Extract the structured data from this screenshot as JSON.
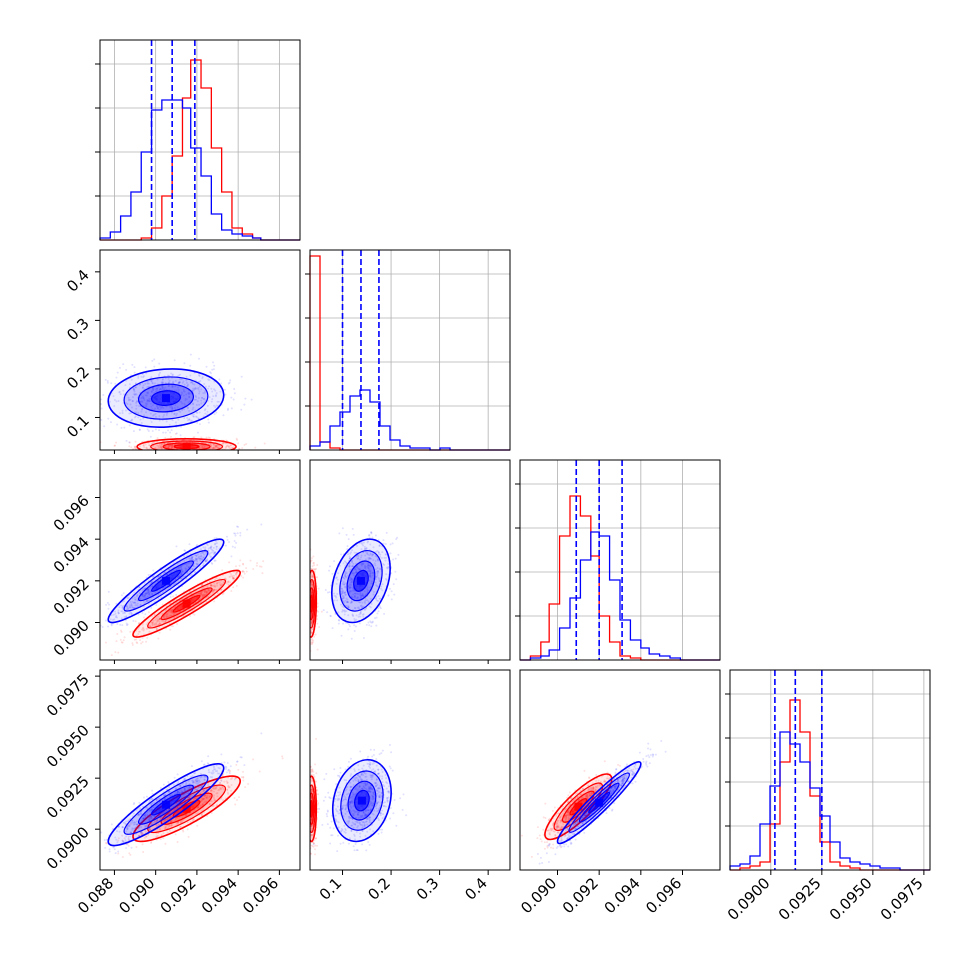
{
  "colors": {
    "series_a": "#ff0000",
    "series_b": "#0000ff",
    "grid": "#b0b0b0",
    "axes": "#000000"
  },
  "chart_data": {
    "type": "corner",
    "grid": true,
    "n_parameters": 4,
    "parameters": [
      {
        "index": 0,
        "range": [
          0.0873,
          0.097
        ],
        "tick_values": [
          0.088,
          0.09,
          0.092,
          0.094,
          0.096
        ],
        "tick_labels": [
          "0.088",
          "0.090",
          "0.092",
          "0.094",
          "0.096"
        ],
        "quantiles_blue": [
          0.0898,
          0.0908,
          0.0919
        ]
      },
      {
        "index": 1,
        "range": [
          0.033,
          0.445
        ],
        "tick_values": [
          0.1,
          0.2,
          0.3,
          0.4
        ],
        "tick_labels": [
          "0.1",
          "0.2",
          "0.3",
          "0.4"
        ],
        "quantiles_blue": [
          0.1,
          0.138,
          0.175
        ]
      },
      {
        "index": 2,
        "range": [
          0.0882,
          0.0978
        ],
        "tick_values": [
          0.09,
          0.092,
          0.094,
          0.096
        ],
        "tick_labels": [
          "0.090",
          "0.092",
          "0.094",
          "0.096"
        ],
        "quantiles_blue": [
          0.0909,
          0.092,
          0.0931
        ]
      },
      {
        "index": 3,
        "range": [
          0.088,
          0.0978
        ],
        "tick_values": [
          0.09,
          0.0925,
          0.095,
          0.0975
        ],
        "tick_labels": [
          "0.0900",
          "0.0925",
          "0.0950",
          "0.0975"
        ],
        "quantiles_blue": [
          0.0902,
          0.0912,
          0.0925
        ]
      }
    ],
    "histograms": [
      {
        "param": 0,
        "bin_edges": [
          0.0873,
          0.0878,
          0.0883,
          0.0888,
          0.0893,
          0.0898,
          0.0903,
          0.0908,
          0.0913,
          0.0917,
          0.0922,
          0.0927,
          0.0932,
          0.0937,
          0.0942,
          0.0947,
          0.0951,
          0.0956,
          0.0961,
          0.0966,
          0.097
        ],
        "red": [
          0,
          0,
          0,
          0,
          0.01,
          0.06,
          0.22,
          0.42,
          0.71,
          0.9,
          0.76,
          0.46,
          0.24,
          0.06,
          0.03,
          0.01,
          0,
          0,
          0,
          0
        ],
        "blue": [
          0.01,
          0.04,
          0.12,
          0.24,
          0.44,
          0.65,
          0.7,
          0.7,
          0.66,
          0.46,
          0.32,
          0.13,
          0.05,
          0.03,
          0.02,
          0.01,
          0,
          0,
          0,
          0
        ]
      },
      {
        "param": 1,
        "bin_edges": [
          0.033,
          0.0536,
          0.0742,
          0.0948,
          0.1154,
          0.136,
          0.1566,
          0.1772,
          0.1978,
          0.2184,
          0.239,
          0.2596,
          0.2802,
          0.3008,
          0.3214,
          0.342,
          0.3626,
          0.3832,
          0.4038,
          0.4244,
          0.445
        ],
        "red": [
          0.97,
          0.04,
          0.01,
          0,
          0,
          0,
          0,
          0,
          0,
          0,
          0,
          0,
          0,
          0,
          0,
          0,
          0,
          0,
          0,
          0
        ],
        "blue": [
          0.02,
          0.04,
          0.12,
          0.19,
          0.27,
          0.3,
          0.24,
          0.12,
          0.05,
          0.02,
          0.01,
          0.01,
          0,
          0.01,
          0,
          0,
          0,
          0,
          0,
          0
        ]
      },
      {
        "param": 2,
        "bin_edges": [
          0.0882,
          0.0887,
          0.0892,
          0.0896,
          0.0901,
          0.0906,
          0.0911,
          0.0916,
          0.092,
          0.0925,
          0.093,
          0.0935,
          0.094,
          0.0944,
          0.0949,
          0.0954,
          0.0959,
          0.0964,
          0.0968,
          0.0973,
          0.0978
        ],
        "red": [
          0,
          0.02,
          0.09,
          0.28,
          0.62,
          0.82,
          0.72,
          0.52,
          0.22,
          0.09,
          0.02,
          0.01,
          0,
          0,
          0,
          0,
          0,
          0,
          0,
          0
        ],
        "blue": [
          0,
          0.01,
          0.02,
          0.05,
          0.16,
          0.31,
          0.5,
          0.64,
          0.62,
          0.4,
          0.2,
          0.1,
          0.06,
          0.03,
          0.02,
          0.01,
          0,
          0,
          0,
          0
        ]
      },
      {
        "param": 3,
        "bin_edges": [
          0.088,
          0.08849,
          0.08898,
          0.08947,
          0.08996,
          0.09045,
          0.09094,
          0.09143,
          0.09192,
          0.09241,
          0.0929,
          0.09339,
          0.09388,
          0.09437,
          0.09486,
          0.09535,
          0.09584,
          0.09633,
          0.09682,
          0.09731,
          0.0978
        ],
        "red": [
          0,
          0.01,
          0.02,
          0.04,
          0.23,
          0.54,
          0.85,
          0.69,
          0.37,
          0.14,
          0.04,
          0.02,
          0.01,
          0,
          0,
          0,
          0,
          0,
          0,
          0
        ],
        "blue": [
          0.02,
          0.03,
          0.07,
          0.23,
          0.42,
          0.69,
          0.63,
          0.54,
          0.41,
          0.27,
          0.14,
          0.06,
          0.04,
          0.03,
          0.02,
          0.01,
          0.01,
          0,
          0,
          0
        ]
      }
    ],
    "joint_2d": [
      {
        "x_param": 0,
        "y_param": 1,
        "red": {
          "mean": [
            0.0915,
            0.04
          ],
          "std": [
            0.0012,
            0.008
          ],
          "corr": 0.0
        },
        "blue": {
          "mean": [
            0.0905,
            0.14
          ],
          "std": [
            0.0014,
            0.03
          ],
          "corr": 0.1
        }
      },
      {
        "x_param": 0,
        "y_param": 2,
        "red": {
          "mean": [
            0.0915,
            0.0909
          ],
          "std": [
            0.0013,
            0.0008
          ],
          "corr": 0.93
        },
        "blue": {
          "mean": [
            0.0905,
            0.092
          ],
          "std": [
            0.0014,
            0.001
          ],
          "corr": 0.93
        }
      },
      {
        "x_param": 1,
        "y_param": 2,
        "red": {
          "mean": [
            0.036,
            0.0909
          ],
          "std": [
            0.005,
            0.0008
          ],
          "corr": 0.1
        },
        "blue": {
          "mean": [
            0.138,
            0.092
          ],
          "std": [
            0.03,
            0.001
          ],
          "corr": 0.3
        }
      },
      {
        "x_param": 0,
        "y_param": 3,
        "red": {
          "mean": [
            0.0915,
            0.091
          ],
          "std": [
            0.0013,
            0.0008
          ],
          "corr": 0.85
        },
        "blue": {
          "mean": [
            0.0905,
            0.0912
          ],
          "std": [
            0.0014,
            0.001
          ],
          "corr": 0.9
        }
      },
      {
        "x_param": 1,
        "y_param": 3,
        "red": {
          "mean": [
            0.036,
            0.091
          ],
          "std": [
            0.005,
            0.0008
          ],
          "corr": 0.0
        },
        "blue": {
          "mean": [
            0.14,
            0.0914
          ],
          "std": [
            0.03,
            0.001
          ],
          "corr": 0.2
        }
      },
      {
        "x_param": 2,
        "y_param": 3,
        "red": {
          "mean": [
            0.091,
            0.0911
          ],
          "std": [
            0.0008,
            0.0008
          ],
          "corr": 0.85
        },
        "blue": {
          "mean": [
            0.092,
            0.0913
          ],
          "std": [
            0.001,
            0.001
          ],
          "corr": 0.95
        }
      }
    ]
  }
}
